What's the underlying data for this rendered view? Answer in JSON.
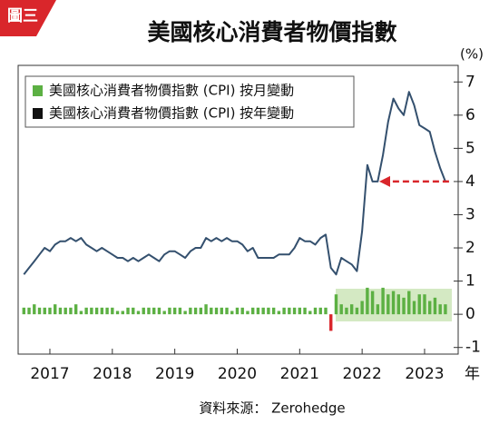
{
  "chart_data": {
    "type": "line",
    "badge": "圖三",
    "title": "美國核心消費者物價指數",
    "ylabel": "(%)",
    "xlabel": "年",
    "source": "資料來源： Zerohedge",
    "categories": [
      null,
      null,
      null,
      null,
      null,
      "2017",
      null,
      null,
      null,
      null,
      null,
      null,
      null,
      null,
      null,
      null,
      null,
      "2018",
      null,
      null,
      null,
      null,
      null,
      null,
      null,
      null,
      null,
      null,
      null,
      "2019",
      null,
      null,
      null,
      null,
      null,
      null,
      null,
      null,
      null,
      null,
      null,
      "2020",
      null,
      null,
      null,
      null,
      null,
      null,
      null,
      null,
      null,
      null,
      null,
      "2021",
      null,
      null,
      null,
      null,
      null,
      null,
      null,
      null,
      null,
      null,
      null,
      "2022",
      null,
      null,
      null,
      null,
      null,
      null,
      null,
      null,
      null,
      null,
      null,
      "2023",
      null,
      null,
      null,
      null
    ],
    "series": [
      {
        "name": "美國核心消費者物價指數 (CPI) 按年變動",
        "type": "line",
        "color": "#34506e",
        "values": [
          1.2,
          1.4,
          1.6,
          1.8,
          2.0,
          1.9,
          2.1,
          2.2,
          2.2,
          2.3,
          2.2,
          2.3,
          2.1,
          2.0,
          1.9,
          2.0,
          1.9,
          1.8,
          1.7,
          1.7,
          1.6,
          1.7,
          1.6,
          1.7,
          1.8,
          1.7,
          1.6,
          1.8,
          1.9,
          1.9,
          1.8,
          1.7,
          1.9,
          2.0,
          2.0,
          2.3,
          2.2,
          2.3,
          2.2,
          2.3,
          2.2,
          2.2,
          2.1,
          1.9,
          2.0,
          1.7,
          1.7,
          1.7,
          1.7,
          1.8,
          1.8,
          1.8,
          2.0,
          2.3,
          2.2,
          2.2,
          2.1,
          2.3,
          2.4,
          1.4,
          1.2,
          1.7,
          1.6,
          1.5,
          1.3,
          2.5,
          4.5,
          4.0,
          4.0,
          4.8,
          5.8,
          6.5,
          6.2,
          6.0,
          6.7,
          6.3,
          5.7,
          5.6,
          5.5,
          4.9,
          4.4,
          4.0
        ]
      },
      {
        "name": "美國核心消費者物價指數 (CPI) 按月變動",
        "type": "bar",
        "color": "#5cb043",
        "values": [
          0.2,
          0.2,
          0.3,
          0.2,
          0.2,
          0.2,
          0.3,
          0.2,
          0.2,
          0.2,
          0.3,
          0.1,
          0.2,
          0.2,
          0.2,
          0.2,
          0.2,
          0.2,
          0.1,
          0.1,
          0.2,
          0.2,
          0.1,
          0.2,
          0.2,
          0.2,
          0.2,
          0.1,
          0.2,
          0.2,
          0.2,
          0.1,
          0.2,
          0.2,
          0.2,
          0.3,
          0.2,
          0.2,
          0.2,
          0.2,
          0.1,
          0.2,
          0.2,
          0.1,
          0.2,
          0.2,
          0.2,
          0.2,
          0.2,
          0.1,
          0.2,
          0.2,
          0.2,
          0.2,
          0.2,
          0.1,
          0.2,
          0.2,
          0.2,
          -0.5,
          0.6,
          0.3,
          0.2,
          0.3,
          0.2,
          0.4,
          0.8,
          0.7,
          0.3,
          0.8,
          0.6,
          0.7,
          0.6,
          0.5,
          0.7,
          0.4,
          0.6,
          0.6,
          0.4,
          0.5,
          0.3,
          0.3
        ]
      }
    ],
    "negative_color": "#d9262b",
    "legend_series_order": [
      1,
      0
    ],
    "ylim": [
      -1.2,
      7.5
    ],
    "yticks": [
      -1,
      0,
      1,
      2,
      3,
      4,
      5,
      6,
      7
    ]
  }
}
